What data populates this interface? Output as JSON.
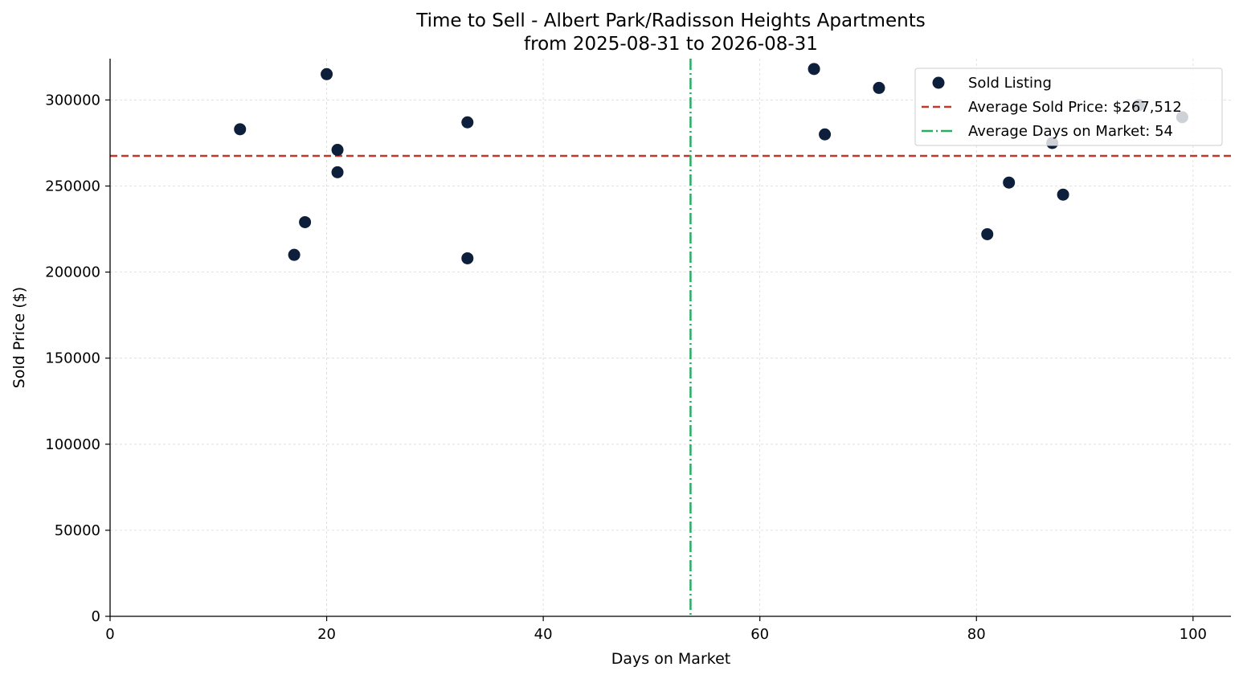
{
  "chart_data": {
    "type": "scatter",
    "title": "Time to Sell - Albert Park/Radisson Heights Apartments",
    "subtitle": "from 2025-08-31 to 2026-08-31",
    "xlabel": "Days on Market",
    "ylabel": "Sold Price ($)",
    "xlim": [
      0,
      103.5
    ],
    "ylim": [
      0,
      324000
    ],
    "x_ticks": [
      0,
      20,
      40,
      60,
      80,
      100
    ],
    "y_ticks": [
      0,
      50000,
      100000,
      150000,
      200000,
      250000,
      300000
    ],
    "grid": true,
    "legend_position": "top-right",
    "series": [
      {
        "name": "Sold Listing",
        "color": "#0d1f3a",
        "points": [
          {
            "x": 12,
            "y": 283000
          },
          {
            "x": 17,
            "y": 210000
          },
          {
            "x": 18,
            "y": 229000
          },
          {
            "x": 20,
            "y": 315000
          },
          {
            "x": 21,
            "y": 271000
          },
          {
            "x": 21,
            "y": 258000
          },
          {
            "x": 33,
            "y": 287000
          },
          {
            "x": 33,
            "y": 208000
          },
          {
            "x": 65,
            "y": 318000
          },
          {
            "x": 66,
            "y": 280000
          },
          {
            "x": 71,
            "y": 307000
          },
          {
            "x": 81,
            "y": 222000
          },
          {
            "x": 83,
            "y": 252000
          },
          {
            "x": 87,
            "y": 275000
          },
          {
            "x": 88,
            "y": 245000
          },
          {
            "x": 95,
            "y": 297000
          },
          {
            "x": 99,
            "y": 290000
          }
        ]
      }
    ],
    "reference_lines": [
      {
        "name": "Average Sold Price: $267,512",
        "orientation": "horizontal",
        "value": 267512,
        "style": "dashed",
        "color": "#c0392b"
      },
      {
        "name": "Average Days on Market: 54",
        "orientation": "vertical",
        "value": 53.6,
        "style": "dashdot",
        "color": "#27ae60"
      }
    ]
  }
}
